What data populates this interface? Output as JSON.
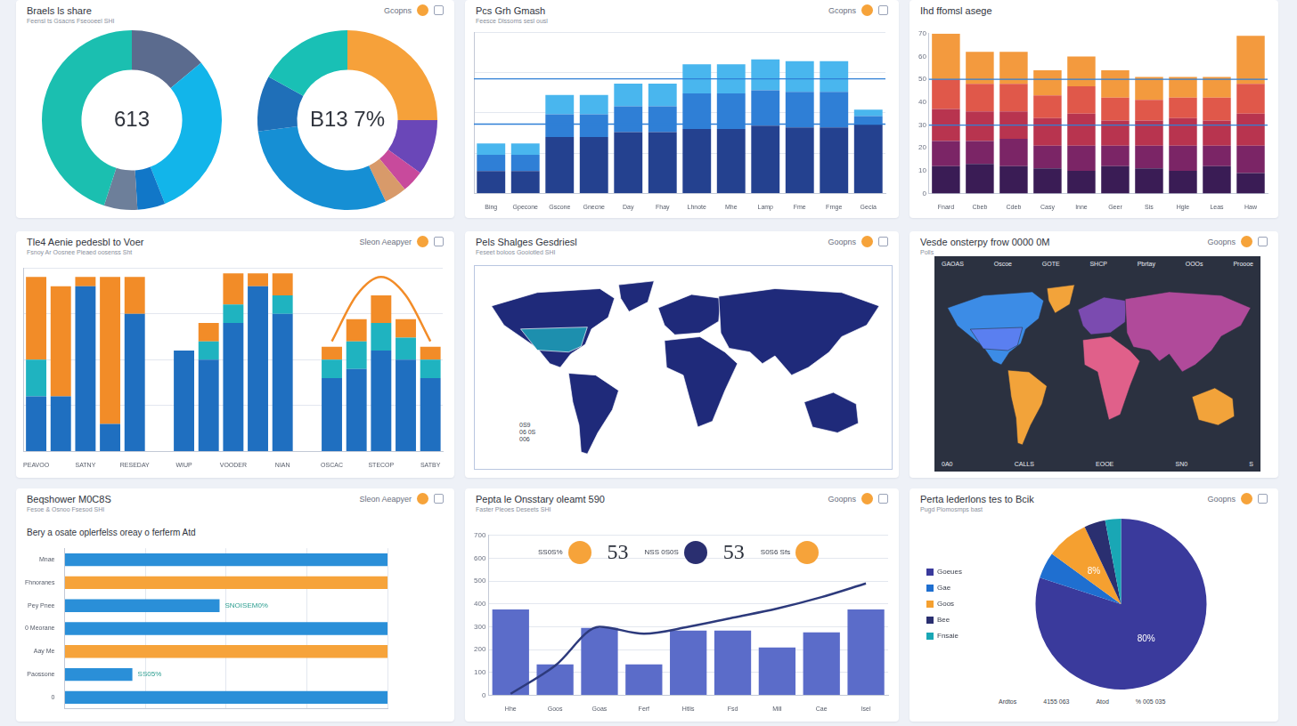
{
  "chart_data": [
    {
      "type": "doughnut",
      "title": "Braels ls share",
      "subtitle": "Feensl ts Gsacns Fseooeel SHI",
      "badge": "Gcopns",
      "center_text": "613",
      "values": [
        14,
        30,
        5,
        6,
        45
      ],
      "colors": [
        "#5b6b8e",
        "#12b5ea",
        "#1177c8",
        "#6d7f9a",
        "#1bbfb0"
      ]
    },
    {
      "type": "doughnut",
      "center_text": "B13 7%",
      "values": [
        25,
        10,
        4,
        4,
        30,
        10,
        17
      ],
      "colors": [
        "#f6a13a",
        "#6a47b8",
        "#c84a9c",
        "#d89a6a",
        "#168fd4",
        "#1f6fb8",
        "#19c0b5"
      ]
    },
    {
      "type": "bar",
      "title": "Pcs Grh Gmash",
      "subtitle": "Feesce Dlssoms sesl ousl",
      "badge": "Gcopns",
      "stacked": true,
      "categories": [
        "Bing",
        "Gpecone",
        "Gscone",
        "Gnecne",
        "Day",
        "Fhay",
        "Lhnote",
        "Mhe",
        "Lamp",
        "Fme",
        "Frnge",
        "Gecia"
      ],
      "series": [
        {
          "color": "#24418f",
          "values": [
            14,
            14,
            35,
            35,
            38,
            38,
            40,
            40,
            42,
            41,
            41,
            43
          ]
        },
        {
          "color": "#2f7fd6",
          "values": [
            10,
            10,
            14,
            14,
            16,
            16,
            22,
            22,
            22,
            22,
            22,
            5
          ]
        },
        {
          "color": "#49b6ee",
          "values": [
            7,
            7,
            12,
            12,
            14,
            14,
            18,
            18,
            19,
            19,
            19,
            4
          ]
        }
      ],
      "ylim": [
        0,
        100
      ],
      "yticks": [
        0,
        25,
        50,
        75,
        100
      ],
      "grid": true,
      "tick_labels": "x",
      "hlines": [
        71,
        43
      ]
    },
    {
      "type": "bar",
      "title": "Ihd ffomsl asege",
      "stacked": true,
      "categories": [
        "Fnard",
        "Cbeb",
        "Cdeb",
        "Casy",
        "Inne",
        "Geer",
        "Sis",
        "Hgle",
        "Leas",
        "Haw"
      ],
      "series": [
        {
          "color": "#3a1c55",
          "values": [
            12,
            13,
            12,
            11,
            10,
            12,
            11,
            10,
            12,
            9
          ]
        },
        {
          "color": "#7b2566",
          "values": [
            11,
            10,
            12,
            10,
            11,
            9,
            10,
            11,
            9,
            12
          ]
        },
        {
          "color": "#b8344f",
          "values": [
            14,
            13,
            12,
            12,
            14,
            11,
            11,
            12,
            11,
            14
          ]
        },
        {
          "color": "#e0584a",
          "values": [
            13,
            12,
            12,
            10,
            12,
            10,
            9,
            9,
            10,
            13
          ]
        },
        {
          "color": "#f39a3e",
          "values": [
            20,
            14,
            14,
            11,
            13,
            12,
            10,
            9,
            9,
            21
          ]
        }
      ],
      "ylim": [
        0,
        70
      ],
      "yticks": [
        0,
        10,
        20,
        30,
        40,
        50,
        60,
        70
      ],
      "grid": false,
      "hlines": [
        50,
        30
      ]
    },
    {
      "type": "bar",
      "title": "Tle4 Aenie pedesbl to Voer",
      "subtitle": "Fsnoy Ar Oosnee Pieaed oosenss Sht",
      "badge": "Sleon Aeapyer",
      "stacked": true,
      "categories": [
        "PEAVOO",
        null,
        "SATNY",
        null,
        "RESEDAY",
        null,
        "WIUP",
        null,
        "VOODER",
        null,
        "NIAN",
        null,
        "OSCAC",
        null,
        "STECOP",
        null,
        "SATBY"
      ],
      "series": [
        {
          "color": "#1f6fc0",
          "values": [
            30,
            30,
            90,
            15,
            75,
            null,
            55,
            50,
            70,
            90,
            75,
            null,
            40,
            45,
            55,
            50,
            40
          ]
        },
        {
          "color": "#1fb3c0",
          "values": [
            20,
            0,
            0,
            0,
            0,
            null,
            0,
            10,
            10,
            0,
            10,
            null,
            10,
            15,
            15,
            12,
            10
          ]
        },
        {
          "color": "#f28c28",
          "values": [
            45,
            60,
            5,
            80,
            20,
            null,
            0,
            10,
            17,
            7,
            12,
            null,
            7,
            12,
            15,
            10,
            7
          ]
        },
        {
          "type": "line",
          "color": "#f28c28",
          "values": [
            null,
            null,
            null,
            null,
            null,
            null,
            null,
            null,
            null,
            null,
            null,
            null,
            60,
            85,
            95,
            85,
            60
          ]
        }
      ],
      "ylim": [
        0,
        100
      ],
      "yticks": [
        0,
        25,
        50,
        75,
        100
      ],
      "grid": true,
      "tick_labels": "x"
    },
    {
      "type": "map",
      "title": "Pels Shalges Gesdriesl",
      "subtitle": "Feseet boloos Gooiotled SHI",
      "badge": "Goopns",
      "colors": [
        "#1f2a7a",
        "#1f2a7a",
        "#1f2a7a",
        "#1f2a7a",
        "#1f2a7a",
        "#1f2a7a",
        "#1f2a7a",
        "#1d8fae"
      ],
      "notes": [
        "0S9",
        "06 0S",
        "006"
      ]
    },
    {
      "type": "map",
      "title": "Vesde onsterpy frow 0000 0M",
      "subtitle": "Polls",
      "badge": "Goopns",
      "colors": [
        "#3c8ce6",
        "#f2a33a",
        "#f2a33a",
        "#7b4bb0",
        "#e0608a",
        "#b04a9a",
        "#f2a33a",
        "#5a7ff0"
      ],
      "legend_items": [
        "GAOAS",
        "Oscoe",
        "GOTE",
        "SHCP",
        "Pbrtay",
        "OOOs",
        "Proooe"
      ],
      "notes": [
        "0A0",
        "CALLS",
        "EOOE",
        "SN0",
        "S"
      ]
    },
    {
      "type": "bar",
      "title": "Beqshower M0C8S",
      "subtitle": "Fesoe & Osnoo Fsesod SHI",
      "badge": "Sleon Aeapyer",
      "heading": "Bery a osate oplerfelss oreay o ferferm Atd",
      "orientation": "horizontal",
      "categories": [
        "Mnae",
        "Fhnoranes",
        "Pey Pnee",
        "0 Meorane",
        "Aay Me",
        "Paossone",
        "0"
      ],
      "values": [
        100,
        100,
        48,
        100,
        100,
        21,
        100
      ],
      "colors": [
        "#2a8fd8",
        "#f6a33a",
        "#2a8fd8",
        "#2a8fd8",
        "#f6a33a",
        "#2a8fd8",
        "#2a8fd8"
      ],
      "annotations": [
        {
          "category": "Pey Pnee",
          "text": "SNOISEM0%"
        },
        {
          "category": "Paossone",
          "text": "SS05%"
        }
      ],
      "xlim": [
        0,
        100
      ],
      "xticks": [
        0,
        25,
        50,
        75,
        100
      ],
      "grid": true,
      "tick_labels": "y"
    },
    {
      "type": "bar",
      "title": "Pepta le Onsstary oleamt 590",
      "subtitle": "Faster Pleoes Deseets SHI",
      "badge": "Goopns",
      "kpis": [
        "SS0S%",
        "53",
        "NSS 0S0S",
        "53",
        "S0S6 Sfs"
      ],
      "categories": [
        "Hhe",
        "Goos",
        "Goas",
        "Ferf",
        "Htlis",
        "Fsd",
        "Mill",
        "Cae",
        "Isel"
      ],
      "series": [
        {
          "type": "bar",
          "color": "#5b6cc9",
          "values": [
            376,
            136,
            295,
            136,
            284,
            284,
            210,
            276,
            376
          ]
        },
        {
          "type": "line",
          "color": "#2d3a7c",
          "values": [
            7,
            130,
            300,
            270,
            300,
            340,
            380,
            430,
            490
          ]
        }
      ],
      "ylim": [
        0,
        700
      ],
      "yticks": [
        0,
        100,
        200,
        300,
        400,
        500,
        600,
        700
      ],
      "grid": true
    },
    {
      "type": "pie",
      "title": "Perta lederlons tes to Bcik",
      "subtitle": "Pugd Plomosmps bast",
      "badge": "Goopns",
      "categories": [
        "Goeues",
        "Gae",
        "Goos",
        "Bee",
        "Fnsaie"
      ],
      "values": [
        80,
        5,
        8,
        4,
        3
      ],
      "colors": [
        "#3a3a9c",
        "#1f6fd0",
        "#f5a030",
        "#2a2f70",
        "#19a7b5"
      ],
      "legend": "left",
      "data_labels": true,
      "value_labels": [
        "80%",
        null,
        "8%",
        null,
        null
      ],
      "notes": [
        "Ardtos",
        "4155 063",
        "Atod",
        "% 005 035"
      ]
    }
  ]
}
